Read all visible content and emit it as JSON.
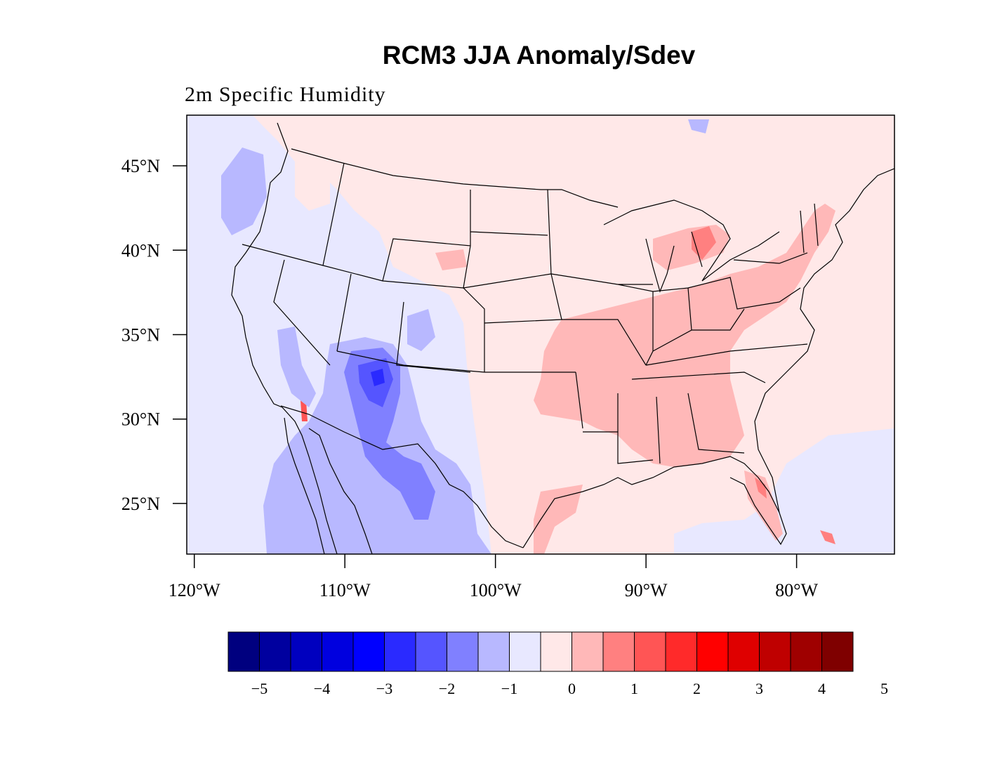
{
  "title": "RCM3 JJA Anomaly/Sdev",
  "subtitle": "2m Specific Humidity",
  "map": {
    "lon_range": [
      -120.5,
      -73.5
    ],
    "lat_range": [
      22,
      48
    ],
    "lat_ticks": [
      {
        "value": 45,
        "label": "45°N"
      },
      {
        "value": 40,
        "label": "40°N"
      },
      {
        "value": 35,
        "label": "35°N"
      },
      {
        "value": 30,
        "label": "30°N"
      },
      {
        "value": 25,
        "label": "25°N"
      }
    ],
    "lon_ticks": [
      {
        "value": -120,
        "label": "120°W"
      },
      {
        "value": -110,
        "label": "110°W"
      },
      {
        "value": -100,
        "label": "100°W"
      },
      {
        "value": -90,
        "label": "90°W"
      },
      {
        "value": -80,
        "label": "80°W"
      }
    ]
  },
  "colorbar": {
    "colors": [
      "#00007f",
      "#00009f",
      "#0000bf",
      "#0000df",
      "#0000ff",
      "#2a2aff",
      "#5555ff",
      "#8080ff",
      "#b8b8ff",
      "#e8e8ff",
      "#ffe8e8",
      "#ffb8b8",
      "#ff8080",
      "#ff5555",
      "#ff2a2a",
      "#ff0000",
      "#df0000",
      "#bf0000",
      "#9f0000",
      "#7f0000"
    ],
    "labels": [
      "−5",
      "−4",
      "−3",
      "−2",
      "−1",
      "0",
      "1",
      "2",
      "3",
      "4",
      "5"
    ]
  }
}
